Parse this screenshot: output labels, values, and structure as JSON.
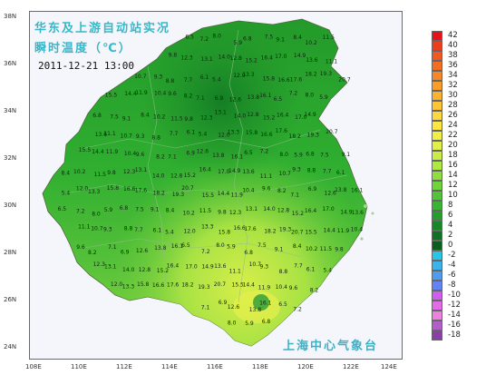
{
  "title": {
    "line1": "华东及上游自动站实况",
    "line2": "瞬时温度（℃）",
    "timestamp": "2011-12-21  13:00"
  },
  "agency_label": "上海中心气象台",
  "latitude_labels": [
    "38N",
    "36N",
    "34N",
    "32N",
    "30N",
    "28N",
    "26N",
    "24N"
  ],
  "longitude_labels": [
    "108E",
    "110E",
    "112E",
    "114E",
    "116E",
    "118E",
    "120E",
    "122E",
    "124E"
  ],
  "legend": [
    {
      "label": "42",
      "color": "#e8121b"
    },
    {
      "label": "40",
      "color": "#ef3c1c"
    },
    {
      "label": "38",
      "color": "#f2571e"
    },
    {
      "label": "36",
      "color": "#f46e21"
    },
    {
      "label": "34",
      "color": "#f78726"
    },
    {
      "label": "32",
      "color": "#f99d2a"
    },
    {
      "label": "30",
      "color": "#fbb22f"
    },
    {
      "label": "28",
      "color": "#fcc535"
    },
    {
      "label": "26",
      "color": "#fdd73b"
    },
    {
      "label": "24",
      "color": "#fbe642"
    },
    {
      "label": "22",
      "color": "#f1ef45"
    },
    {
      "label": "20",
      "color": "#e0f046"
    },
    {
      "label": "18",
      "color": "#c8ee45"
    },
    {
      "label": "16",
      "color": "#aee842"
    },
    {
      "label": "14",
      "color": "#8edf3e"
    },
    {
      "label": "12",
      "color": "#6ed43a"
    },
    {
      "label": "10",
      "color": "#50c636"
    },
    {
      "label": "8",
      "color": "#37b432"
    },
    {
      "label": "6",
      "color": "#259e2c"
    },
    {
      "label": "4",
      "color": "#178827"
    },
    {
      "label": "2",
      "color": "#0e7222"
    },
    {
      "label": "0",
      "color": "#0a5f1f"
    },
    {
      "label": "-2",
      "color": "#26c6e8"
    },
    {
      "label": "-4",
      "color": "#3bb4ee"
    },
    {
      "label": "-6",
      "color": "#4e9bf2"
    },
    {
      "label": "-8",
      "color": "#6383f4"
    },
    {
      "label": "-10",
      "color": "#d05cf0"
    },
    {
      "label": "-12",
      "color": "#e36ae8"
    },
    {
      "label": "-14",
      "color": "#ec82e0"
    },
    {
      "label": "-16",
      "color": "#b15ec8"
    },
    {
      "label": "-18",
      "color": "#8a3fa8"
    }
  ],
  "station_values": [
    "6.5",
    "7.2",
    "8.0",
    "5.9",
    "6.8",
    "7.5",
    "9.1",
    "8.4",
    "10.2",
    "11.5",
    "9.8",
    "12.3",
    "13.1",
    "14.0",
    "12.8",
    "15.2",
    "16.4",
    "17.0",
    "14.9",
    "13.6",
    "11.1",
    "10.7",
    "9.3",
    "8.8",
    "7.7",
    "6.1",
    "5.4",
    "12.0",
    "13.3",
    "15.8",
    "16.6",
    "17.6",
    "18.2",
    "19.3",
    "20.7",
    "15.5",
    "14.4",
    "11.9",
    "10.4",
    "9.6",
    "8.2",
    "7.1",
    "6.9",
    "12.6",
    "13.8",
    "16.1"
  ]
}
